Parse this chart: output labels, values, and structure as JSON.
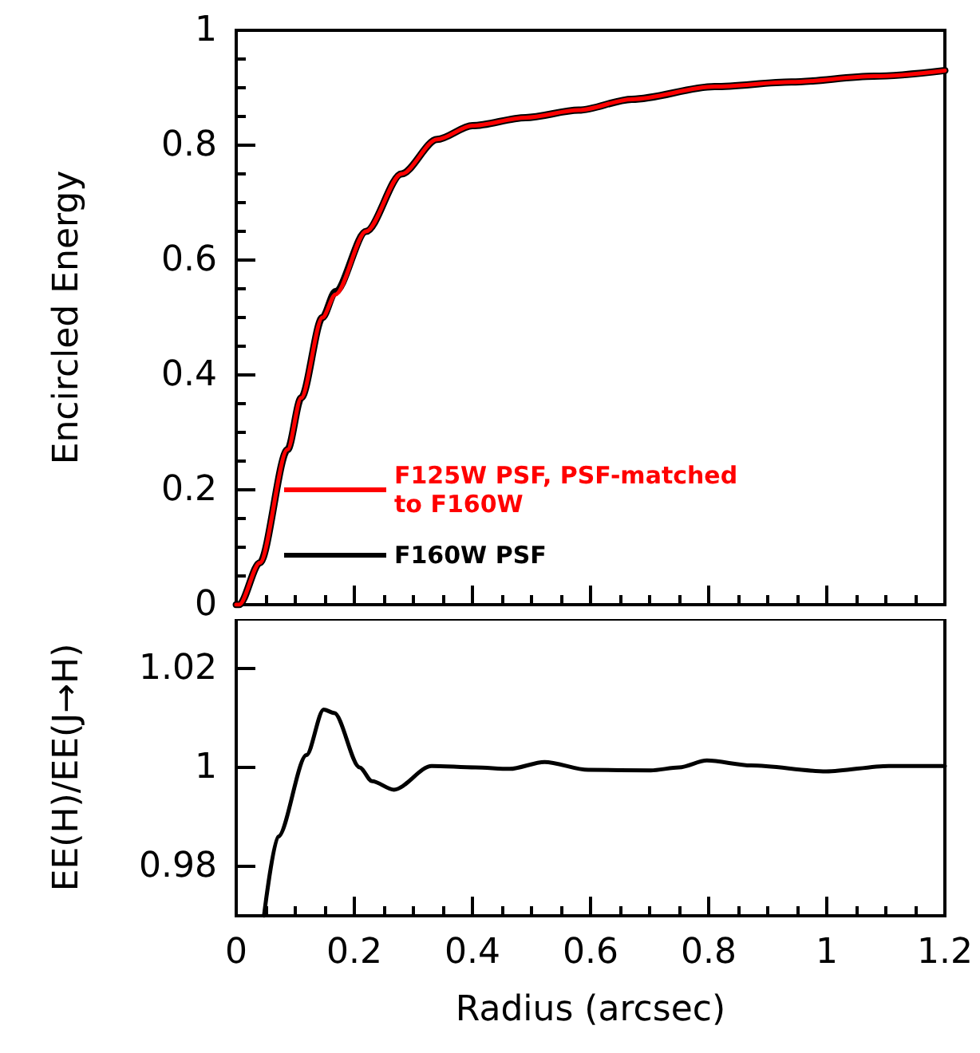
{
  "chart_data": [
    {
      "type": "line",
      "ylabel": "Encircled Energy",
      "xlim": [
        0,
        1.2
      ],
      "xticks": [
        0,
        0.2,
        0.4,
        0.6,
        0.8,
        1,
        1.2
      ],
      "ylim": [
        0,
        1
      ],
      "yticks": [
        0,
        0.2,
        0.4,
        0.6,
        0.8,
        1
      ],
      "tick_labels": "y",
      "legend": "bottom left",
      "x": [
        0,
        0.005,
        0.04,
        0.087,
        0.11,
        0.146,
        0.168,
        0.22,
        0.28,
        0.34,
        0.4,
        0.49,
        0.58,
        0.67,
        0.81,
        0.94,
        1.08,
        1.2
      ],
      "series": [
        {
          "name": "F125W PSF, PSF-matched to F160W",
          "color": "#ff0000",
          "values": [
            0,
            0,
            0.073,
            0.27,
            0.36,
            0.5,
            0.54,
            0.65,
            0.75,
            0.81,
            0.834,
            0.848,
            0.861,
            0.88,
            0.902,
            0.91,
            0.92,
            0.93
          ]
        },
        {
          "name": "F160W PSF",
          "color": "#000000",
          "values": [
            0,
            0,
            0.073,
            0.27,
            0.36,
            0.5,
            0.545,
            0.65,
            0.75,
            0.81,
            0.834,
            0.848,
            0.861,
            0.88,
            0.902,
            0.91,
            0.92,
            0.93
          ]
        }
      ]
    },
    {
      "type": "line",
      "xlabel": "Radius (arcsec)",
      "ylabel": "EE(H)/EE(J→H)",
      "xlim": [
        0,
        1.2
      ],
      "xticks": [
        0,
        0.2,
        0.4,
        0.6,
        0.8,
        1,
        1.2
      ],
      "ylim": [
        0.97,
        1.03
      ],
      "yticks": [
        0.98,
        1,
        1.02
      ],
      "x": [
        0.047,
        0.071,
        0.119,
        0.148,
        0.166,
        0.209,
        0.23,
        0.267,
        0.331,
        0.405,
        0.463,
        0.522,
        0.596,
        0.702,
        0.75,
        0.797,
        0.872,
        0.999,
        1.105,
        1.2
      ],
      "series": [
        {
          "color": "#000000",
          "values": [
            0.97,
            0.986,
            1.0025,
            1.0117,
            1.011,
            1.0,
            0.9972,
            0.9955,
            1.0003,
            1.0,
            0.9997,
            1.0011,
            0.9995,
            0.9994,
            1.0,
            1.0014,
            1.0004,
            0.9992,
            1.0003,
            1.0003
          ]
        }
      ]
    }
  ]
}
